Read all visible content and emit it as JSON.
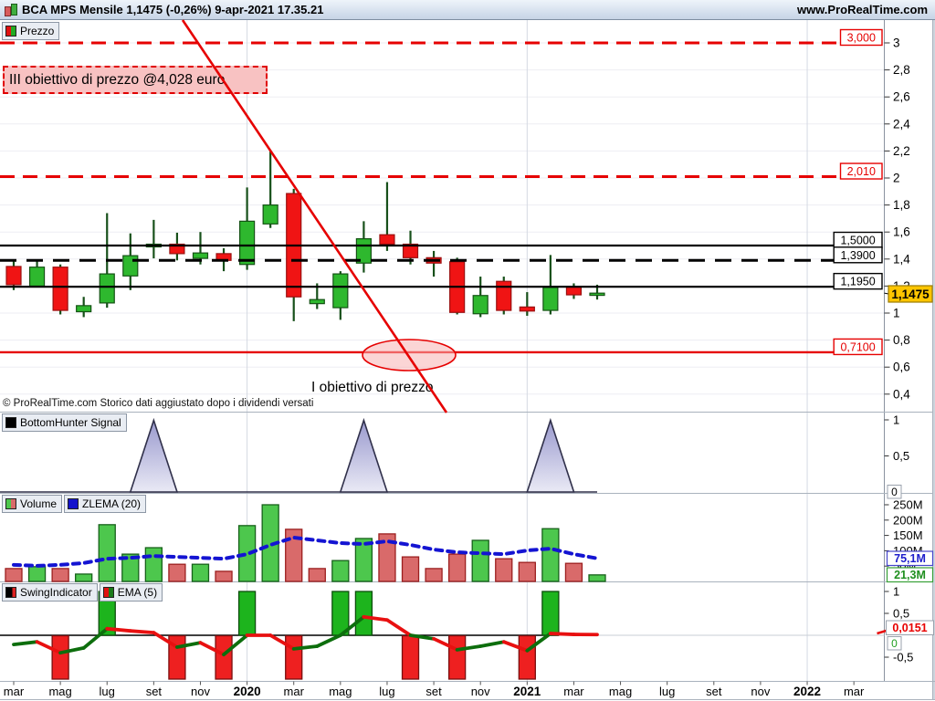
{
  "title_bar": {
    "title": "BCA MPS Mensile 1,1475 (-0,26%) 9-apr-2021 17.35.21",
    "url": "www.ProRealTime.com"
  },
  "colors": {
    "candle_up": "#2eb82e",
    "candle_down": "#f01414",
    "candle_up_border": "#145214",
    "candle_down_border": "#9a1010",
    "wick": "#17501a",
    "vol_up": "#4dc74d",
    "vol_down": "#d96a6a",
    "vol_up_border": "#17611a",
    "vol_down_border": "#9c1f1f",
    "zlema": "#1414d2",
    "ema_up": "#0d6e0d",
    "ema_down": "#e81010",
    "signal_fill_top": "#9a9ace",
    "signal_fill_bottom": "#e9e9f5",
    "signal_stroke": "#30304a",
    "accent_red": "#e60000",
    "last_price_bg": "#fdc500"
  },
  "price_panel": {
    "legend": "Prezzo",
    "y_ticks": [
      {
        "label": "3",
        "value": 3.0
      },
      {
        "label": "2,8",
        "value": 2.8
      },
      {
        "label": "2,6",
        "value": 2.6
      },
      {
        "label": "2,4",
        "value": 2.4
      },
      {
        "label": "2,2",
        "value": 2.2
      },
      {
        "label": "2",
        "value": 2.0
      },
      {
        "label": "1,8",
        "value": 1.8
      },
      {
        "label": "1,6",
        "value": 1.6
      },
      {
        "label": "1,4",
        "value": 1.4
      },
      {
        "label": "1,2",
        "value": 1.2
      },
      {
        "label": "1",
        "value": 1.0
      },
      {
        "label": "0,8",
        "value": 0.8
      },
      {
        "label": "0,6",
        "value": 0.6
      },
      {
        "label": "0,4",
        "value": 0.4
      }
    ],
    "levels": [
      {
        "label": "3,000",
        "value": 3.0,
        "color": "#e60000",
        "line": "dashed"
      },
      {
        "label": "2,010",
        "value": 2.01,
        "color": "#e60000",
        "line": "dashed"
      },
      {
        "label": "1,5000",
        "value": 1.5,
        "color": "#000000",
        "line": "solid"
      },
      {
        "label": "1,3900",
        "value": 1.39,
        "color": "#000000",
        "line": "dashed"
      },
      {
        "label": "1,1950",
        "value": 1.195,
        "color": "#000000",
        "line": "solid"
      },
      {
        "label": "0,7100",
        "value": 0.71,
        "color": "#e60000",
        "line": "solid"
      }
    ],
    "last_price": {
      "label": "1,1475",
      "value": 1.1475
    },
    "annotations": {
      "target_iii": "III obiettivo di prezzo @4,028 euro",
      "target_i": "I obiettivo di prezzo",
      "copyright": "© ProRealTime.com Storico dati aggiustato dopo i dividendi versati"
    }
  },
  "bottomhunter_panel": {
    "legend": "BottomHunter Signal",
    "y_ticks": [
      {
        "label": "1",
        "value": 1
      },
      {
        "label": "0,5",
        "value": 0.5
      }
    ],
    "current_value_label": "0"
  },
  "volume_panel": {
    "legend_volume": "Volume",
    "legend_zlema": "ZLEMA (20)",
    "y_ticks": [
      {
        "label": "250M",
        "value": 250
      },
      {
        "label": "200M",
        "value": 200
      },
      {
        "label": "150M",
        "value": 150
      },
      {
        "label": "100M",
        "value": 100
      },
      {
        "label": "50M",
        "value": 50
      }
    ],
    "zlema_value_label": "75,1M",
    "volume_value_label": "21,3M"
  },
  "swing_panel": {
    "legend_swing": "SwingIndicator",
    "legend_ema": "EMA (5)",
    "y_ticks": [
      {
        "label": "1",
        "value": 1
      },
      {
        "label": "0,5",
        "value": 0.5
      },
      {
        "label": "-0,5",
        "value": -0.5
      }
    ],
    "ema_value_label": "0,0151",
    "current_value_label": "0"
  },
  "x_axis": {
    "labels": [
      {
        "text": "mar",
        "index": 0,
        "bold": false
      },
      {
        "text": "mag",
        "index": 2,
        "bold": false
      },
      {
        "text": "lug",
        "index": 4,
        "bold": false
      },
      {
        "text": "set",
        "index": 6,
        "bold": false
      },
      {
        "text": "nov",
        "index": 8,
        "bold": false
      },
      {
        "text": "2020",
        "index": 10,
        "bold": true
      },
      {
        "text": "mar",
        "index": 12,
        "bold": false
      },
      {
        "text": "mag",
        "index": 14,
        "bold": false
      },
      {
        "text": "lug",
        "index": 16,
        "bold": false
      },
      {
        "text": "set",
        "index": 18,
        "bold": false
      },
      {
        "text": "nov",
        "index": 20,
        "bold": false
      },
      {
        "text": "2021",
        "index": 22,
        "bold": true
      },
      {
        "text": "mar",
        "index": 24,
        "bold": false
      },
      {
        "text": "mag",
        "index": 26,
        "bold": false
      },
      {
        "text": "lug",
        "index": 28,
        "bold": false
      },
      {
        "text": "set",
        "index": 30,
        "bold": false
      },
      {
        "text": "nov",
        "index": 32,
        "bold": false
      },
      {
        "text": "2022",
        "index": 34,
        "bold": true
      },
      {
        "text": "mar",
        "index": 36,
        "bold": false
      }
    ]
  },
  "chart_data": {
    "type": "candlestick",
    "title": "BCA MPS Mensile",
    "months": [
      "mar-2019",
      "apr-2019",
      "mag-2019",
      "giu-2019",
      "lug-2019",
      "ago-2019",
      "set-2019",
      "ott-2019",
      "nov-2019",
      "dic-2019",
      "gen-2020",
      "feb-2020",
      "mar-2020",
      "apr-2020",
      "mag-2020",
      "giu-2020",
      "lug-2020",
      "ago-2020",
      "set-2020",
      "ott-2020",
      "nov-2020",
      "dic-2020",
      "gen-2021",
      "feb-2021",
      "mar-2021",
      "apr-2021"
    ],
    "ohlc": [
      [
        1.345,
        1.39,
        1.17,
        1.21
      ],
      [
        1.2,
        1.39,
        1.19,
        1.34
      ],
      [
        1.34,
        1.36,
        0.99,
        1.02
      ],
      [
        1.01,
        1.12,
        0.97,
        1.055
      ],
      [
        1.075,
        1.74,
        1.04,
        1.29
      ],
      [
        1.275,
        1.59,
        1.17,
        1.425
      ],
      [
        1.49,
        1.69,
        1.405,
        1.51
      ],
      [
        1.51,
        1.595,
        1.39,
        1.44
      ],
      [
        1.405,
        1.6,
        1.36,
        1.445
      ],
      [
        1.44,
        1.48,
        1.31,
        1.39
      ],
      [
        1.36,
        1.93,
        1.32,
        1.68
      ],
      [
        1.66,
        2.2,
        1.63,
        1.8
      ],
      [
        1.885,
        1.92,
        0.94,
        1.12
      ],
      [
        1.07,
        1.22,
        1.03,
        1.1
      ],
      [
        1.04,
        1.31,
        0.95,
        1.29
      ],
      [
        1.37,
        1.68,
        1.3,
        1.55
      ],
      [
        1.58,
        1.97,
        1.46,
        1.51
      ],
      [
        1.51,
        1.61,
        1.36,
        1.41
      ],
      [
        1.41,
        1.46,
        1.27,
        1.37
      ],
      [
        1.38,
        1.41,
        0.99,
        1.005
      ],
      [
        0.995,
        1.27,
        0.97,
        1.13
      ],
      [
        1.235,
        1.27,
        0.99,
        1.02
      ],
      [
        1.045,
        1.155,
        0.98,
        1.015
      ],
      [
        1.02,
        1.43,
        0.99,
        1.19
      ],
      [
        1.195,
        1.22,
        1.105,
        1.135
      ],
      [
        1.135,
        1.21,
        1.1,
        1.1475
      ]
    ],
    "ylim_price": [
      0.3,
      3.05
    ],
    "series": [
      {
        "name": "BottomHunter Signal",
        "type": "area",
        "ylim": [
          0,
          1
        ],
        "values": [
          0,
          0,
          0,
          0,
          0,
          0,
          1,
          0,
          0,
          0,
          0,
          0,
          0,
          0,
          0,
          1,
          0,
          0,
          0,
          0,
          0,
          0,
          0,
          1,
          0,
          0
        ]
      },
      {
        "name": "Volume",
        "type": "bar",
        "unit": "M",
        "ylim": [
          0,
          285
        ],
        "values": [
          42,
          48,
          42,
          24,
          185,
          89,
          110,
          56,
          56,
          33,
          182,
          250,
          170,
          42,
          68,
          140,
          155,
          80,
          42,
          89,
          134,
          74,
          62,
          172,
          59,
          21.3
        ],
        "colors": [
          "r",
          "g",
          "r",
          "g",
          "g",
          "g",
          "g",
          "r",
          "g",
          "r",
          "g",
          "g",
          "r",
          "r",
          "g",
          "g",
          "r",
          "r",
          "r",
          "r",
          "g",
          "r",
          "r",
          "g",
          "r",
          "g"
        ]
      },
      {
        "name": "ZLEMA (20)",
        "type": "line",
        "unit": "M",
        "values": [
          54,
          51,
          54,
          60,
          74,
          77,
          83,
          80,
          77,
          74,
          89,
          119,
          143,
          134,
          125,
          122,
          131,
          119,
          104,
          95,
          92,
          89,
          101,
          107,
          89,
          75.1
        ]
      },
      {
        "name": "SwingIndicator",
        "type": "bar",
        "ylim": [
          -1,
          1
        ],
        "values": [
          0,
          0,
          -1,
          0,
          1,
          0,
          0,
          -1,
          0,
          -1,
          1,
          0,
          -1,
          0,
          1,
          1,
          0,
          -1,
          0,
          -1,
          0,
          0,
          -1,
          1,
          0,
          0
        ]
      },
      {
        "name": "EMA (5)",
        "type": "line",
        "values": [
          -0.21,
          -0.15,
          -0.4,
          -0.29,
          0.15,
          0.1,
          0.06,
          -0.27,
          -0.17,
          -0.44,
          0,
          0,
          -0.31,
          -0.25,
          0,
          0.42,
          0.35,
          0,
          -0.08,
          -0.33,
          -0.25,
          -0.15,
          -0.35,
          0.04,
          0.02,
          0.015
        ],
        "segment_colors": [
          "g",
          "r",
          "g",
          "g",
          "r",
          "r",
          "r",
          "g",
          "r",
          "g",
          "r",
          "r",
          "g",
          "g",
          "g",
          "r",
          "r",
          "g",
          "r",
          "g",
          "g",
          "r",
          "g",
          "r",
          "r"
        ]
      }
    ]
  }
}
